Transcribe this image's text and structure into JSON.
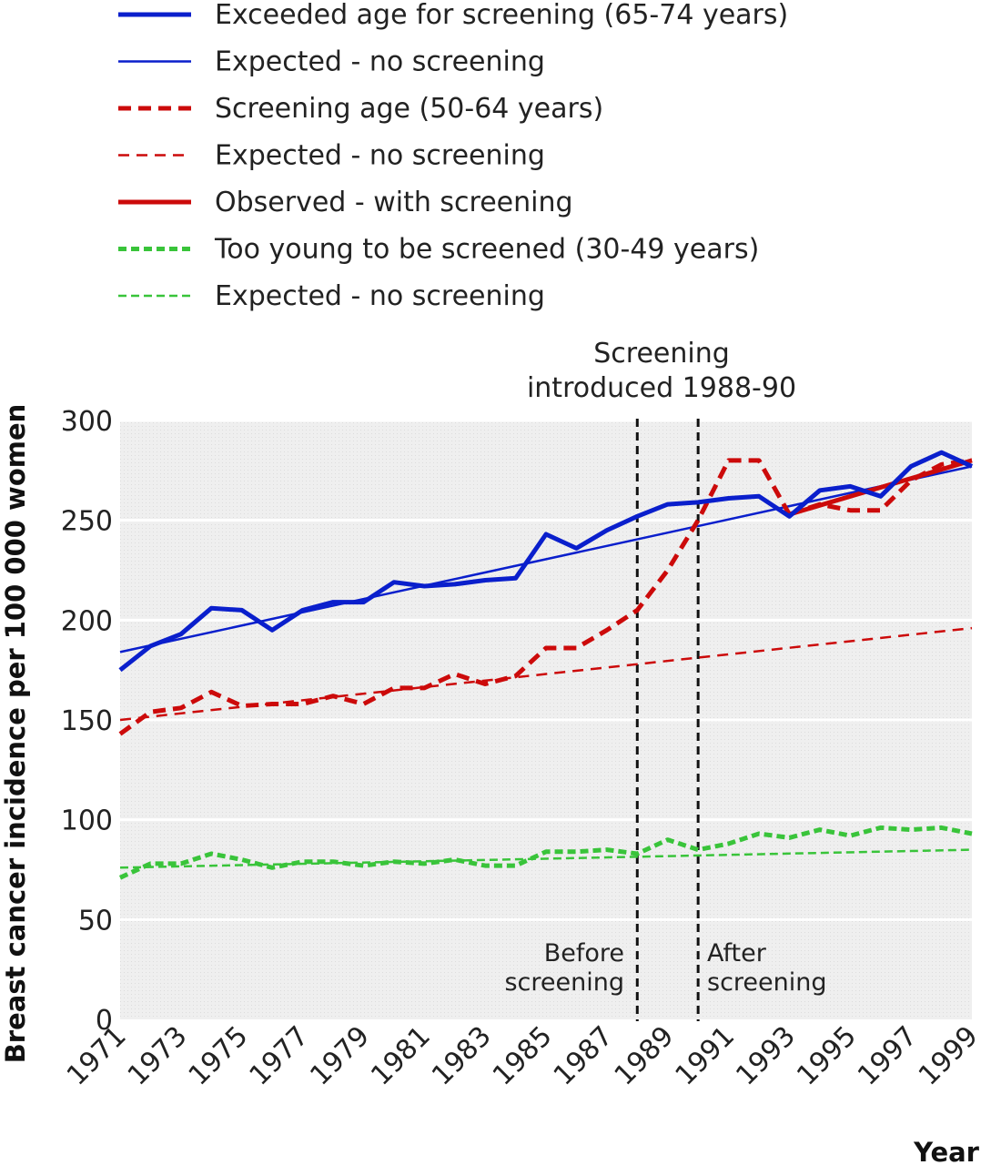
{
  "chart_data": {
    "type": "line",
    "ylabel": "Breast cancer incidence per 100 000 women",
    "xlabel": "Year",
    "ylim": [
      0,
      300
    ],
    "yticks": [
      0,
      50,
      100,
      150,
      200,
      250,
      300
    ],
    "xlim": [
      1971,
      1999
    ],
    "xticks": [
      "1971",
      "1973",
      "1975",
      "1977",
      "1979",
      "1981",
      "1983",
      "1985",
      "1987",
      "1989",
      "1991",
      "1993",
      "1995",
      "1997",
      "1999"
    ],
    "grid": true,
    "legend_position": "top",
    "x": [
      1971,
      1972,
      1973,
      1974,
      1975,
      1976,
      1977,
      1978,
      1979,
      1980,
      1981,
      1982,
      1983,
      1984,
      1985,
      1986,
      1987,
      1988,
      1989,
      1990,
      1991,
      1992,
      1993,
      1994,
      1995,
      1996,
      1997,
      1998,
      1999
    ],
    "series": [
      {
        "name": "Exceeded age for screening (65-74 years)",
        "color": "#0a1fcc",
        "width": 5,
        "dash": "solid",
        "x": [
          1971,
          1972,
          1973,
          1974,
          1975,
          1976,
          1977,
          1978,
          1979,
          1980,
          1981,
          1982,
          1983,
          1984,
          1985,
          1986,
          1987,
          1988,
          1989,
          1990,
          1991,
          1992,
          1993,
          1994,
          1995,
          1996,
          1997,
          1998,
          1999
        ],
        "values": [
          175,
          187,
          193,
          206,
          205,
          195,
          205,
          209,
          209,
          219,
          217,
          218,
          220,
          221,
          243,
          236,
          245,
          252,
          258,
          259,
          261,
          262,
          252,
          265,
          267,
          262,
          277,
          284,
          277
        ]
      },
      {
        "name": "Expected - no screening",
        "color": "#0a1fcc",
        "width": 2.5,
        "dash": "solid",
        "x": [
          1971,
          1999
        ],
        "values": [
          184,
          277
        ]
      },
      {
        "name": "Screening age (50-64 years)",
        "color": "#cc0a0a",
        "width": 5,
        "dash": "14,8",
        "x": [
          1971,
          1972,
          1973,
          1974,
          1975,
          1976,
          1977,
          1978,
          1979,
          1980,
          1981,
          1982,
          1983,
          1984,
          1985,
          1986,
          1987,
          1988,
          1989,
          1990,
          1991,
          1992,
          1993
        ],
        "values": [
          143,
          154,
          156,
          164,
          157,
          158,
          158,
          162,
          158,
          166,
          166,
          173,
          168,
          172,
          186,
          186,
          195,
          205,
          225,
          250,
          280,
          280,
          253
        ]
      },
      {
        "name": "Expected - no screening",
        "color": "#cc0a0a",
        "width": 2.5,
        "dash": "12,8",
        "x": [
          1971,
          1999
        ],
        "values": [
          150,
          196
        ]
      },
      {
        "name": "Observed - with screening",
        "color": "#cc0a0a",
        "width": 5,
        "dash": "solid",
        "x": [
          1993,
          1999
        ],
        "values": [
          253,
          280
        ]
      },
      {
        "name": "",
        "color": "#cc0a0a",
        "width": 5,
        "dash": "14,8",
        "x": [
          1993,
          1994,
          1995,
          1996,
          1997,
          1998,
          1999
        ],
        "values": [
          253,
          258,
          255,
          255,
          270,
          278,
          280
        ]
      },
      {
        "name": "Too young to be screened (30-49 years)",
        "color": "#39c43a",
        "width": 5,
        "dash": "9,5",
        "x": [
          1971,
          1972,
          1973,
          1974,
          1975,
          1976,
          1977,
          1978,
          1979,
          1980,
          1981,
          1982,
          1983,
          1984,
          1985,
          1986,
          1987,
          1988,
          1989,
          1990,
          1991,
          1992,
          1993,
          1994,
          1995,
          1996,
          1997,
          1998,
          1999
        ],
        "values": [
          71,
          78,
          78,
          83,
          80,
          76,
          79,
          79,
          77,
          79,
          78,
          80,
          77,
          77,
          84,
          84,
          85,
          83,
          90,
          85,
          88,
          93,
          91,
          95,
          92,
          96,
          95,
          96,
          93
        ]
      },
      {
        "name": "Expected - no screening",
        "color": "#39c43a",
        "width": 2.5,
        "dash": "9,5",
        "x": [
          1971,
          1999
        ],
        "values": [
          76,
          85
        ]
      }
    ],
    "annotations": {
      "screening_title_line1": "Screening",
      "screening_title_line2": "introduced 1988-90",
      "before_line1": "Before",
      "before_line2": "screening",
      "after_line1": "After",
      "after_line2": "screening",
      "vlines": [
        1988,
        1990
      ]
    }
  }
}
